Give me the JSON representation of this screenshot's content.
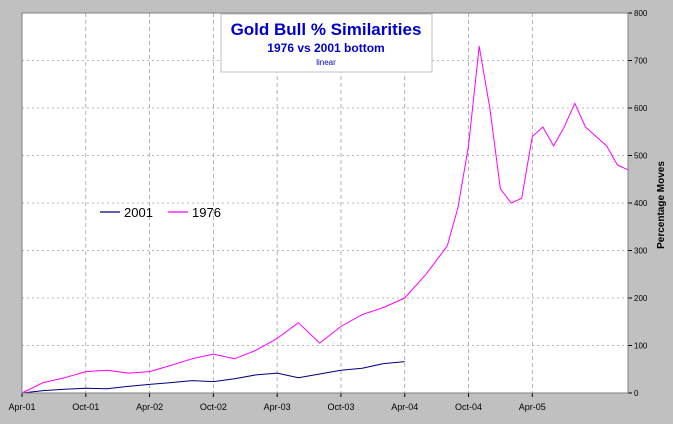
{
  "chart_data": {
    "type": "line",
    "title": "Gold Bull % Similarities",
    "subtitle": "1976 vs 2001 bottom",
    "scale_note": "linear",
    "xlabel": "",
    "ylabel": "Percentage Moves",
    "ylim": [
      0,
      800
    ],
    "yticks": [
      0,
      100,
      200,
      300,
      400,
      500,
      600,
      700,
      800
    ],
    "xlim": [
      "2001-04",
      "2006-01"
    ],
    "xticks": [
      "2001-04",
      "2001-10",
      "2002-04",
      "2002-10",
      "2003-04",
      "2003-10",
      "2004-04",
      "2004-10",
      "2005-04"
    ],
    "xtick_labels": [
      "Apr-01",
      "Oct-01",
      "Apr-02",
      "Oct-02",
      "Apr-03",
      "Oct-03",
      "Apr-04",
      "Oct-04",
      "Apr-05"
    ],
    "grid": true,
    "legend": "left",
    "series": [
      {
        "name": "2001",
        "color": "#000080",
        "x": [
          "2001-04",
          "2001-06",
          "2001-08",
          "2001-10",
          "2001-12",
          "2002-02",
          "2002-04",
          "2002-06",
          "2002-08",
          "2002-10",
          "2002-12",
          "2003-02",
          "2003-04",
          "2003-06",
          "2003-08",
          "2003-10",
          "2003-12",
          "2004-02",
          "2004-04"
        ],
        "y": [
          0,
          5,
          8,
          10,
          9,
          14,
          18,
          22,
          26,
          24,
          30,
          38,
          42,
          32,
          40,
          48,
          52,
          62,
          66
        ]
      },
      {
        "name": "1976",
        "color": "#ff00ff",
        "x": [
          "2001-04",
          "2001-06",
          "2001-08",
          "2001-10",
          "2001-12",
          "2002-02",
          "2002-04",
          "2002-06",
          "2002-08",
          "2002-10",
          "2002-12",
          "2003-02",
          "2003-04",
          "2003-06",
          "2003-08",
          "2003-10",
          "2003-12",
          "2004-02",
          "2004-04",
          "2004-06",
          "2004-08",
          "2004-09",
          "2004-10",
          "2004-11",
          "2004-12",
          "2005-01",
          "2005-02",
          "2005-03",
          "2005-04",
          "2005-05",
          "2005-06",
          "2005-07",
          "2005-08",
          "2005-09",
          "2005-10",
          "2005-11",
          "2005-12",
          "2006-01"
        ],
        "y": [
          0,
          22,
          32,
          45,
          48,
          42,
          45,
          58,
          72,
          82,
          72,
          90,
          115,
          148,
          105,
          140,
          165,
          180,
          200,
          250,
          310,
          390,
          520,
          730,
          600,
          430,
          400,
          410,
          540,
          560,
          520,
          560,
          610,
          560,
          540,
          520,
          480,
          470
        ]
      }
    ]
  }
}
